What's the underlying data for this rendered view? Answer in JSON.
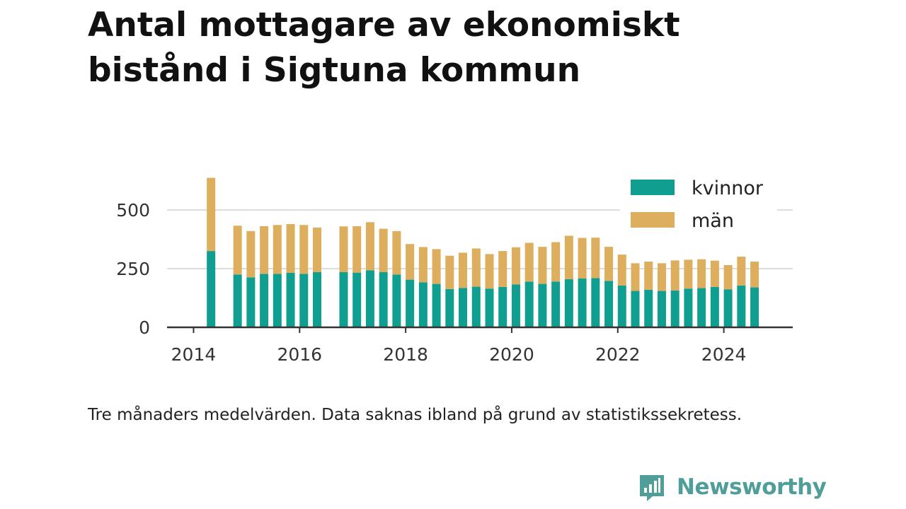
{
  "title": "Antal mottagare av ekonomiskt bistånd i Sigtuna kommun",
  "note": "Tre månaders medelvärden. Data saknas ibland på grund av statistikssekretess.",
  "brand": {
    "name": "Newsworthy",
    "logo_icon": "bar-chart-badge-icon"
  },
  "colors": {
    "kvinnor": "#109e90",
    "man": "#dcae5e",
    "grid": "#dddddd",
    "axis": "#333333",
    "brand": "#4f9e9a"
  },
  "chart_data": {
    "type": "bar",
    "stacked": true,
    "title": "Antal mottagare av ekonomiskt bistånd i Sigtuna kommun",
    "xlabel": "",
    "ylabel": "",
    "xlim": [
      2013.5,
      2025.3
    ],
    "ylim": [
      0,
      680
    ],
    "xticks": [
      "2014",
      "2016",
      "2018",
      "2020",
      "2022",
      "2024"
    ],
    "yticks": [
      "0",
      "250",
      "500"
    ],
    "grid": "horizontal",
    "legend": "top-right",
    "x": [
      2014.33,
      2014.83,
      2015.08,
      2015.33,
      2015.58,
      2015.83,
      2016.08,
      2016.33,
      2016.83,
      2017.08,
      2017.33,
      2017.58,
      2017.83,
      2018.08,
      2018.33,
      2018.58,
      2018.83,
      2019.08,
      2019.33,
      2019.58,
      2019.83,
      2020.08,
      2020.33,
      2020.58,
      2020.83,
      2021.08,
      2021.33,
      2021.58,
      2021.83,
      2022.08,
      2022.33,
      2022.58,
      2022.83,
      2023.08,
      2023.33,
      2023.58,
      2023.83,
      2024.08,
      2024.33,
      2024.58
    ],
    "series": [
      {
        "name": "kvinnor",
        "values": [
          325,
          225,
          213,
          228,
          228,
          232,
          228,
          235,
          235,
          233,
          243,
          235,
          225,
          203,
          192,
          185,
          163,
          168,
          173,
          165,
          172,
          183,
          195,
          185,
          195,
          205,
          208,
          210,
          198,
          178,
          155,
          160,
          155,
          157,
          165,
          167,
          172,
          162,
          178,
          170
        ]
      },
      {
        "name": "män",
        "values": [
          312,
          208,
          197,
          203,
          208,
          208,
          208,
          190,
          195,
          198,
          205,
          185,
          185,
          152,
          150,
          148,
          142,
          150,
          163,
          147,
          153,
          158,
          165,
          158,
          168,
          185,
          173,
          172,
          145,
          132,
          118,
          120,
          118,
          128,
          123,
          123,
          112,
          103,
          123,
          110
        ]
      }
    ]
  }
}
